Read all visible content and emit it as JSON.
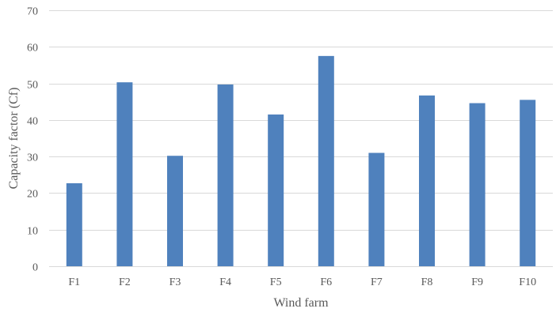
{
  "chart_data": {
    "type": "bar",
    "title": "",
    "xlabel": "Wind farm",
    "ylabel": "Capacity factor (Cf)",
    "categories": [
      "F1",
      "F2",
      "F3",
      "F4",
      "F5",
      "F6",
      "F7",
      "F8",
      "F9",
      "F10"
    ],
    "series": [
      {
        "name": "Capacity factor",
        "values": [
          22.7,
          50.3,
          30.2,
          49.7,
          41.5,
          57.5,
          31.0,
          46.7,
          44.6,
          45.5
        ]
      }
    ],
    "ylim": [
      0,
      70
    ],
    "yticks": [
      0,
      10,
      20,
      30,
      40,
      50,
      60,
      70
    ],
    "grid": true,
    "legend": "none",
    "colors": {
      "bar": "#4f81bd",
      "grid": "#d9d9d9",
      "text": "#595959"
    }
  }
}
